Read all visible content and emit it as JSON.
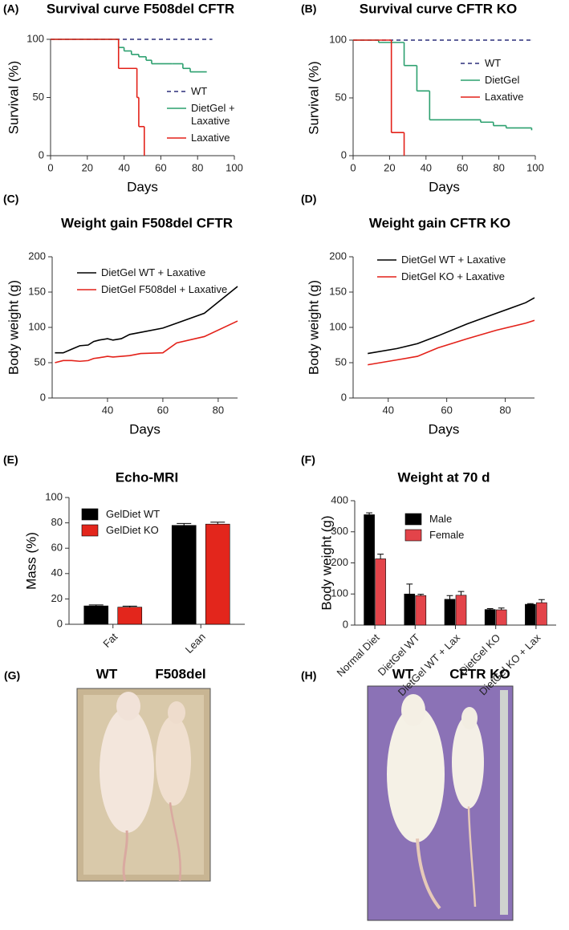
{
  "chart_data": [
    {
      "type": "line",
      "drawstyle": "steps-post",
      "panel": "(A)",
      "title": "Survival curve F508del CFTR",
      "xlabel": "Days",
      "ylabel": "Survival (%)",
      "xlim": [
        0,
        100
      ],
      "xticks": [
        0,
        20,
        40,
        60,
        80,
        100
      ],
      "ylim": [
        0,
        100
      ],
      "yticks": [
        0,
        50,
        100
      ],
      "legend": "right",
      "series": [
        {
          "name": "WT",
          "color": "#2b2f7a",
          "linestyle": "dashed",
          "x": [
            0,
            88
          ],
          "values": [
            100,
            100
          ]
        },
        {
          "name": "DietGel + Laxative",
          "color": "#2ca06f",
          "linestyle": "solid",
          "x": [
            0,
            37,
            40,
            44,
            48,
            52,
            55,
            66,
            72,
            76,
            85
          ],
          "values": [
            100,
            93,
            90,
            87,
            85,
            82,
            79,
            79,
            75,
            72,
            72
          ]
        },
        {
          "name": "Laxative",
          "color": "#e32119",
          "linestyle": "solid",
          "x": [
            0,
            37,
            47,
            48,
            51
          ],
          "values": [
            100,
            75,
            50,
            25,
            0
          ]
        }
      ]
    },
    {
      "type": "line",
      "drawstyle": "steps-post",
      "panel": "(B)",
      "title": "Survival curve CFTR KO",
      "xlabel": "Days",
      "ylabel": "Survival (%)",
      "xlim": [
        0,
        100
      ],
      "xticks": [
        0,
        20,
        40,
        60,
        80,
        100
      ],
      "ylim": [
        0,
        100
      ],
      "yticks": [
        0,
        50,
        100
      ],
      "legend": "right",
      "series": [
        {
          "name": "WT",
          "color": "#2b2f7a",
          "linestyle": "dashed",
          "x": [
            0,
            98
          ],
          "values": [
            100,
            100
          ]
        },
        {
          "name": "DietGel",
          "color": "#2ca06f",
          "linestyle": "solid",
          "x": [
            0,
            14,
            28,
            35,
            42,
            70,
            77,
            84,
            98
          ],
          "values": [
            100,
            98,
            78,
            56,
            31,
            29,
            26,
            24,
            22
          ]
        },
        {
          "name": "Laxative",
          "color": "#e32119",
          "linestyle": "solid",
          "x": [
            0,
            21,
            28
          ],
          "values": [
            100,
            20,
            0
          ]
        }
      ]
    },
    {
      "type": "line",
      "panel": "(C)",
      "title": "Weight gain F508del CFTR",
      "xlabel": "Days",
      "ylabel": "Body weight (g)",
      "xlim": [
        20,
        87
      ],
      "xticks": [
        40,
        60,
        80
      ],
      "ylim": [
        0,
        200
      ],
      "yticks": [
        0,
        50,
        100,
        150,
        200
      ],
      "legend": "upper left",
      "series": [
        {
          "name": "DietGel WT + Laxative",
          "color": "#000000",
          "linestyle": "solid",
          "x": [
            21,
            24,
            27,
            30,
            33,
            35,
            37,
            40,
            42,
            45,
            48,
            52,
            60,
            65,
            75,
            87
          ],
          "values": [
            64,
            64,
            69,
            74,
            75,
            80,
            82,
            84,
            82,
            84,
            90,
            93,
            99,
            106,
            120,
            158
          ]
        },
        {
          "name": "DietGel F508del + Laxative",
          "color": "#e32119",
          "linestyle": "solid",
          "x": [
            21,
            24,
            27,
            30,
            33,
            35,
            37,
            40,
            42,
            45,
            48,
            52,
            60,
            65,
            75,
            87
          ],
          "values": [
            50,
            53,
            53,
            52,
            53,
            56,
            57,
            59,
            58,
            59,
            60,
            63,
            64,
            78,
            87,
            109
          ]
        }
      ]
    },
    {
      "type": "line",
      "panel": "(D)",
      "title": "Weight gain CFTR KO",
      "xlabel": "Days",
      "ylabel": "Body weight (g)",
      "xlim": [
        28,
        90
      ],
      "xticks": [
        40,
        60,
        80
      ],
      "ylim": [
        0,
        200
      ],
      "yticks": [
        0,
        50,
        100,
        150,
        200
      ],
      "legend": "upper left",
      "series": [
        {
          "name": "DietGel WT + Laxative",
          "color": "#000000",
          "linestyle": "solid",
          "x": [
            33,
            43,
            50,
            57,
            67,
            77,
            87,
            90
          ],
          "values": [
            63,
            70,
            77,
            88,
            105,
            120,
            135,
            142
          ]
        },
        {
          "name": "DietGel KO + Laxative",
          "color": "#e32119",
          "linestyle": "solid",
          "x": [
            33,
            43,
            50,
            57,
            67,
            77,
            87,
            90
          ],
          "values": [
            47,
            54,
            59,
            71,
            84,
            96,
            106,
            110
          ]
        }
      ]
    },
    {
      "type": "bar",
      "panel": "(E)",
      "title": "Echo-MRI",
      "ylabel": "Mass (%)",
      "categories": [
        "Fat",
        "Lean"
      ],
      "ylim": [
        0,
        100
      ],
      "yticks": [
        0,
        20,
        40,
        60,
        80,
        100
      ],
      "legend": "upper left",
      "series": [
        {
          "name": "GelDiet WT",
          "color": "#000000",
          "values": [
            14.5,
            78
          ],
          "errors": [
            0.8,
            1.5
          ]
        },
        {
          "name": "GelDiet KO",
          "color": "#e3261c",
          "values": [
            13.5,
            79
          ],
          "errors": [
            0.8,
            1.5
          ]
        }
      ]
    },
    {
      "type": "bar",
      "panel": "(F)",
      "title": "Weight at 70 d",
      "ylabel": "Body weight (g)",
      "categories": [
        "Normal Diet",
        "DietGel WT",
        "DietGel WT + Lax",
        "DietGel KO",
        "DietGel KO + Lax"
      ],
      "ylim": [
        0,
        400
      ],
      "yticks": [
        0,
        100,
        200,
        300,
        400
      ],
      "legend": "upper center",
      "series": [
        {
          "name": "Male",
          "color": "#000000",
          "values": [
            355,
            100,
            83,
            50,
            67
          ],
          "errors": [
            6,
            32,
            12,
            3,
            2
          ]
        },
        {
          "name": "Female",
          "color": "#e3444a",
          "values": [
            213,
            95,
            96,
            49,
            72
          ],
          "errors": [
            15,
            4,
            12,
            6,
            10
          ]
        }
      ]
    }
  ],
  "photos": [
    {
      "panel": "(G)",
      "labels": [
        "WT",
        "F508del"
      ]
    },
    {
      "panel": "(H)",
      "labels": [
        "WT",
        "CFTR KO"
      ]
    }
  ]
}
